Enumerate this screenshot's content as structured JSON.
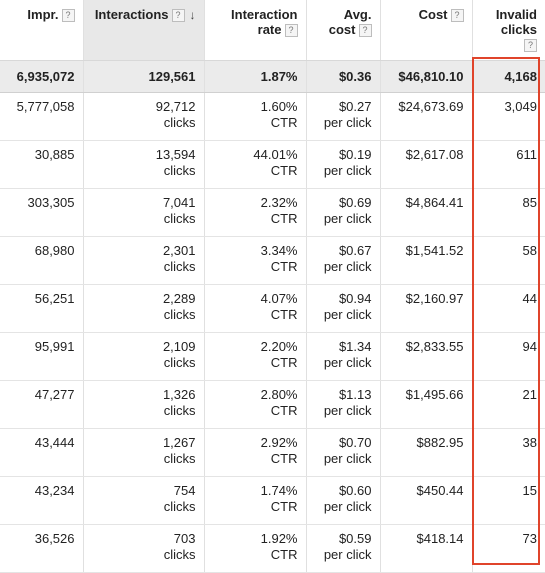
{
  "headers": {
    "impr": "Impr.",
    "interactions": "Interactions",
    "interaction_rate_l1": "Interaction",
    "interaction_rate_l2": "rate",
    "avg_cost_l1": "Avg.",
    "avg_cost_l2": "cost",
    "cost": "Cost",
    "invalid_l1": "Invalid",
    "invalid_l2": "clicks",
    "help": "?",
    "sort_arrow": "↓"
  },
  "total": {
    "impr": "6,935,072",
    "interactions": "129,561",
    "rate": "1.87%",
    "avg_cost": "$0.36",
    "cost": "$46,810.10",
    "invalid": "4,168"
  },
  "rows": [
    {
      "impr": "5,777,058",
      "interactions": "92,712",
      "int_unit": "clicks",
      "rate": "1.60%",
      "rate_unit": "CTR",
      "avg_cost": "$0.27",
      "cost_unit": "per click",
      "cost": "$24,673.69",
      "invalid": "3,049"
    },
    {
      "impr": "30,885",
      "interactions": "13,594",
      "int_unit": "clicks",
      "rate": "44.01%",
      "rate_unit": "CTR",
      "avg_cost": "$0.19",
      "cost_unit": "per click",
      "cost": "$2,617.08",
      "invalid": "611"
    },
    {
      "impr": "303,305",
      "interactions": "7,041",
      "int_unit": "clicks",
      "rate": "2.32%",
      "rate_unit": "CTR",
      "avg_cost": "$0.69",
      "cost_unit": "per click",
      "cost": "$4,864.41",
      "invalid": "85"
    },
    {
      "impr": "68,980",
      "interactions": "2,301",
      "int_unit": "clicks",
      "rate": "3.34%",
      "rate_unit": "CTR",
      "avg_cost": "$0.67",
      "cost_unit": "per click",
      "cost": "$1,541.52",
      "invalid": "58"
    },
    {
      "impr": "56,251",
      "interactions": "2,289",
      "int_unit": "clicks",
      "rate": "4.07%",
      "rate_unit": "CTR",
      "avg_cost": "$0.94",
      "cost_unit": "per click",
      "cost": "$2,160.97",
      "invalid": "44"
    },
    {
      "impr": "95,991",
      "interactions": "2,109",
      "int_unit": "clicks",
      "rate": "2.20%",
      "rate_unit": "CTR",
      "avg_cost": "$1.34",
      "cost_unit": "per click",
      "cost": "$2,833.55",
      "invalid": "94"
    },
    {
      "impr": "47,277",
      "interactions": "1,326",
      "int_unit": "clicks",
      "rate": "2.80%",
      "rate_unit": "CTR",
      "avg_cost": "$1.13",
      "cost_unit": "per click",
      "cost": "$1,495.66",
      "invalid": "21"
    },
    {
      "impr": "43,444",
      "interactions": "1,267",
      "int_unit": "clicks",
      "rate": "2.92%",
      "rate_unit": "CTR",
      "avg_cost": "$0.70",
      "cost_unit": "per click",
      "cost": "$882.95",
      "invalid": "38"
    },
    {
      "impr": "43,234",
      "interactions": "754",
      "int_unit": "clicks",
      "rate": "1.74%",
      "rate_unit": "CTR",
      "avg_cost": "$0.60",
      "cost_unit": "per click",
      "cost": "$450.44",
      "invalid": "15"
    },
    {
      "impr": "36,526",
      "interactions": "703",
      "int_unit": "clicks",
      "rate": "1.92%",
      "rate_unit": "CTR",
      "avg_cost": "$0.59",
      "cost_unit": "per click",
      "cost": "$418.14",
      "invalid": "73"
    }
  ],
  "colors": {
    "highlight": "#e0442b",
    "total_bg": "#ebebeb",
    "sorted_header_bg": "#e8e8e8"
  }
}
